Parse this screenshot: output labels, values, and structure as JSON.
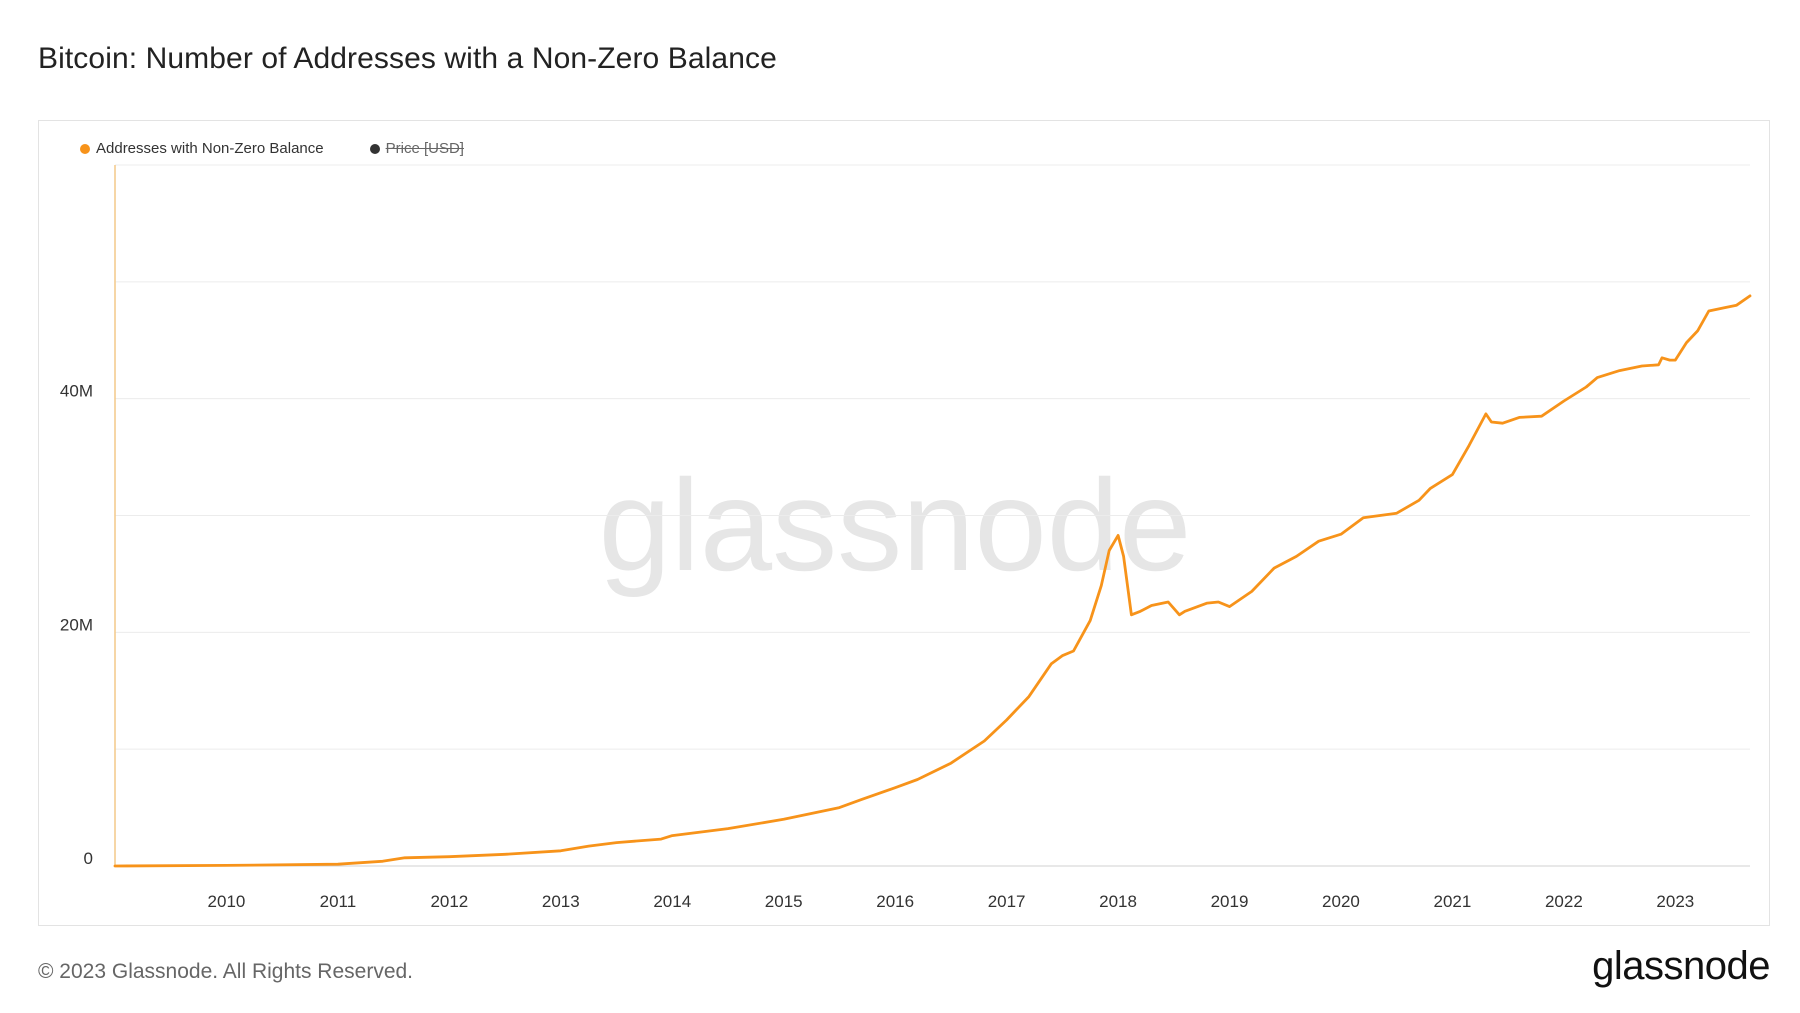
{
  "page": {
    "title": "Bitcoin: Number of Addresses with a Non-Zero Balance",
    "copyright": "© 2023 Glassnode. All Rights Reserved.",
    "logo": "glassnode",
    "watermark": "glassnode"
  },
  "legend": [
    {
      "label": "Addresses with Non-Zero Balance",
      "color": "#f7931a",
      "active": true
    },
    {
      "label": "Price [USD]",
      "color": "#333333",
      "active": false
    }
  ],
  "chart_data": {
    "type": "line",
    "title": "Bitcoin: Number of Addresses with a Non-Zero Balance",
    "xlabel": "",
    "ylabel": "",
    "x_ticks": [
      "2010",
      "2011",
      "2012",
      "2013",
      "2014",
      "2015",
      "2016",
      "2017",
      "2018",
      "2019",
      "2020",
      "2021",
      "2022",
      "2023"
    ],
    "y_ticks": [
      {
        "value": 0,
        "label": "0"
      },
      {
        "value": 20000000,
        "label": "20M"
      },
      {
        "value": 40000000,
        "label": "40M"
      }
    ],
    "xlim": [
      2009.0,
      2023.67
    ],
    "ylim": [
      0,
      60000000
    ],
    "grid": true,
    "legend_position": "top-left",
    "series": [
      {
        "name": "Addresses with Non-Zero Balance",
        "color": "#f7931a",
        "x": [
          2009.0,
          2010.0,
          2011.0,
          2011.4,
          2011.6,
          2012.0,
          2012.5,
          2013.0,
          2013.25,
          2013.5,
          2013.9,
          2014.0,
          2014.5,
          2015.0,
          2015.5,
          2015.7,
          2016.0,
          2016.2,
          2016.5,
          2016.8,
          2017.0,
          2017.2,
          2017.4,
          2017.5,
          2017.6,
          2017.75,
          2017.85,
          2017.92,
          2018.0,
          2018.05,
          2018.12,
          2018.2,
          2018.3,
          2018.45,
          2018.55,
          2018.6,
          2018.8,
          2018.9,
          2019.0,
          2019.2,
          2019.4,
          2019.6,
          2019.8,
          2020.0,
          2020.2,
          2020.5,
          2020.7,
          2020.8,
          2021.0,
          2021.15,
          2021.25,
          2021.3,
          2021.35,
          2021.45,
          2021.6,
          2021.8,
          2022.0,
          2022.2,
          2022.3,
          2022.5,
          2022.7,
          2022.85,
          2022.88,
          2022.95,
          2023.0,
          2023.1,
          2023.2,
          2023.3,
          2023.45,
          2023.55,
          2023.67
        ],
        "values": [
          0,
          50000,
          150000,
          400000,
          700000,
          800000,
          1000000,
          1300000,
          1700000,
          2000000,
          2300000,
          2600000,
          3200000,
          4000000,
          5000000,
          5700000,
          6700000,
          7400000,
          8800000,
          10700000,
          12500000,
          14500000,
          17300000,
          18000000,
          18400000,
          21000000,
          24000000,
          27000000,
          28300000,
          26500000,
          21500000,
          21800000,
          22300000,
          22600000,
          21500000,
          21800000,
          22500000,
          22600000,
          22200000,
          23500000,
          25500000,
          26500000,
          27800000,
          28400000,
          29800000,
          30200000,
          31300000,
          32300000,
          33500000,
          36000000,
          37800000,
          38700000,
          38000000,
          37900000,
          38400000,
          38500000,
          39800000,
          41000000,
          41800000,
          42400000,
          42800000,
          42900000,
          43500000,
          43300000,
          43300000,
          44800000,
          45800000,
          47500000,
          47800000,
          48000000,
          48800000
        ]
      }
    ]
  }
}
